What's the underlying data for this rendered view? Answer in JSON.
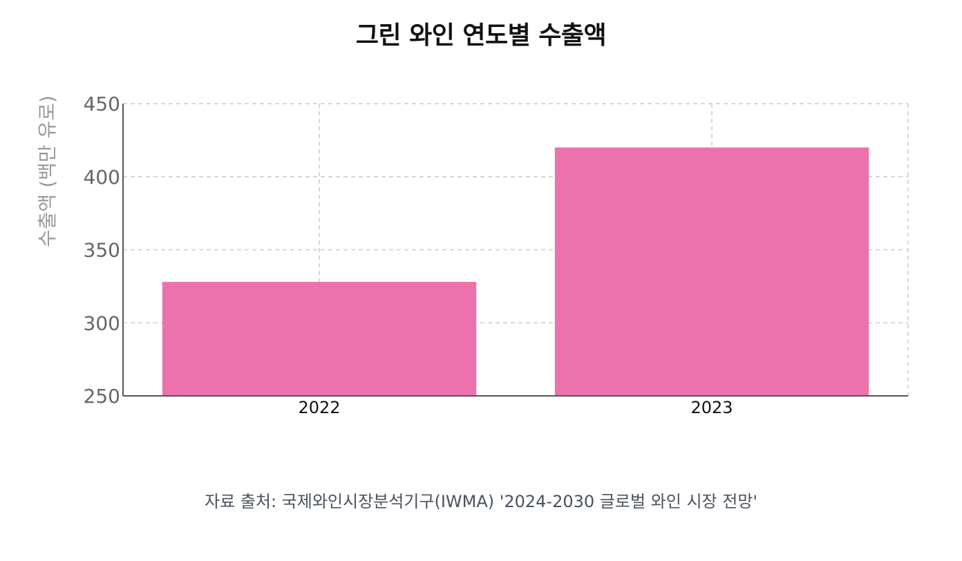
{
  "chart_data": {
    "type": "bar",
    "title": "그린 와인 연도별 수출액",
    "categories": [
      "2022",
      "2023"
    ],
    "series": [
      {
        "values": [
          328,
          420
        ]
      }
    ],
    "xlabel": "",
    "ylabel": "수출액 (백만 유로)",
    "ylim": [
      250,
      450
    ],
    "yticks": [
      250,
      300,
      350,
      400,
      450
    ],
    "grid": true,
    "bar_color": "#ec72ae",
    "source": "자료 출처: 국제와인시장분석기구(IWMA) '2024-2030 글로벌 와인 시장 전망'"
  }
}
